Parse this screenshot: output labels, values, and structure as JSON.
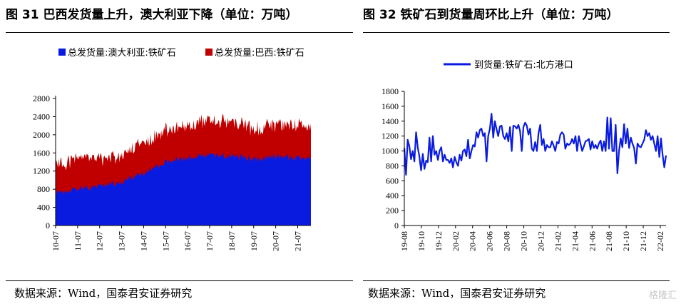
{
  "left": {
    "title": "图 31 巴西发货量上升，澳大利亚下降（单位：万吨）",
    "source": "数据来源：Wind，国泰君安证券研究",
    "chart_data": {
      "type": "area",
      "stacked": true,
      "x_ticks": [
        "10-07",
        "11-07",
        "12-07",
        "13-07",
        "14-07",
        "15-07",
        "16-07",
        "17-07",
        "18-07",
        "19-07",
        "20-07",
        "21-07"
      ],
      "ylim": [
        0,
        2800
      ],
      "y_ticks": [
        0,
        400,
        800,
        1200,
        1600,
        2000,
        2400,
        2800
      ],
      "legend_position": "top",
      "series": [
        {
          "name": "总发货量:澳大利亚:铁矿石",
          "color": "#0a1be0",
          "x": [
            "10-07",
            "11-07",
            "12-07",
            "13-07",
            "14-07",
            "15-07",
            "16-07",
            "17-07",
            "18-07",
            "19-07",
            "20-07",
            "21-07"
          ],
          "values": [
            720,
            800,
            860,
            950,
            1150,
            1400,
            1480,
            1550,
            1530,
            1460,
            1540,
            1480
          ]
        },
        {
          "name": "总发货量:巴西:铁矿石",
          "color": "#c00000",
          "x": [
            "10-07",
            "11-07",
            "12-07",
            "13-07",
            "14-07",
            "15-07",
            "16-07",
            "17-07",
            "18-07",
            "19-07",
            "20-07",
            "21-07"
          ],
          "values": [
            600,
            620,
            580,
            560,
            620,
            680,
            700,
            730,
            720,
            640,
            660,
            680
          ]
        }
      ]
    }
  },
  "right": {
    "title": "图 32 铁矿石到货量周环比上升（单位：万吨）",
    "source": "数据来源：Wind，国泰君安证券研究",
    "chart_data": {
      "type": "line",
      "x_ticks": [
        "19-08",
        "19-10",
        "19-12",
        "20-02",
        "20-04",
        "20-06",
        "20-08",
        "20-10",
        "20-12",
        "21-02",
        "21-04",
        "21-06",
        "21-08",
        "21-10",
        "21-12",
        "22-02"
      ],
      "ylim": [
        0,
        1800
      ],
      "y_ticks": [
        0,
        200,
        400,
        600,
        800,
        1000,
        1200,
        1400,
        1600,
        1800
      ],
      "legend_position": "top",
      "series": [
        {
          "name": "到货量:铁矿石:北方港口",
          "color": "#0a1be0",
          "values": [
            1040,
            680,
            1150,
            1060,
            890,
            1000,
            860,
            1250,
            1050,
            920,
            740,
            960,
            760,
            870,
            850,
            1180,
            860,
            1200,
            950,
            1000,
            880,
            1000,
            1050,
            860,
            950,
            880,
            880,
            840,
            900,
            780,
            920,
            850,
            800,
            950,
            870,
            1000,
            1020,
            930,
            1150,
            900,
            1000,
            1080,
            1060,
            1250,
            1180,
            1280,
            1300,
            1200,
            1240,
            860,
            1200,
            1300,
            1500,
            1180,
            1400,
            1290,
            1200,
            1330,
            1340,
            1200,
            1160,
            1240,
            1130,
            1320,
            1000,
            1340,
            1330,
            1300,
            1350,
            1270,
            1000,
            1320,
            1380,
            1340,
            1220,
            1300,
            1030,
            1000,
            1120,
            1000,
            1240,
            1350,
            1080,
            1160,
            1000,
            1080,
            1050,
            1050,
            1130,
            1070,
            1000,
            1120,
            1100,
            1220,
            1250,
            1220,
            1030,
            1100,
            1080,
            1100,
            1160,
            1100,
            1200,
            1000,
            1200,
            1100,
            1000,
            1060,
            1130,
            1140,
            1160,
            1020,
            1130,
            1040,
            1080,
            1030,
            1100,
            1140,
            1000,
            1130,
            1000,
            1450,
            1030,
            1440,
            1000,
            1000,
            1350,
            700,
            1000,
            1170,
            1050,
            1360,
            1100,
            1300,
            1040,
            1180,
            1100,
            1040,
            830,
            1100,
            1060,
            1050,
            1100,
            1150,
            1280,
            1200,
            1240,
            1150,
            1200,
            1100,
            1000,
            1200,
            920,
            1170,
            940,
            780,
            940
          ]
        }
      ]
    }
  },
  "watermark": "格隆汇"
}
